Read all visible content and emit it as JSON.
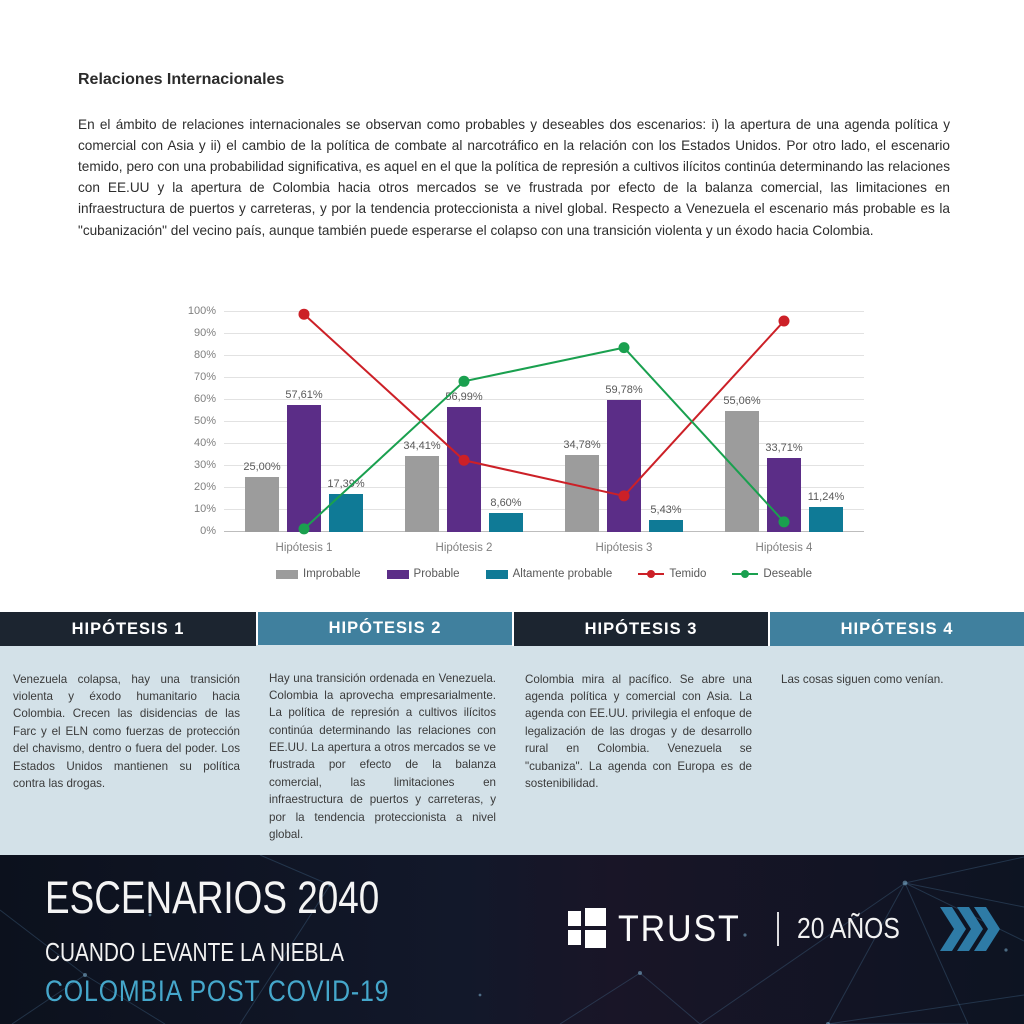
{
  "page": {
    "title": "Relaciones Internacionales",
    "intro": "En el ámbito de relaciones internacionales se observan como probables y deseables dos escenarios: i) la apertura de una agenda política y comercial con Asia y ii) el cambio de la política de combate al narcotráfico en la relación con los Estados Unidos. Por otro lado, el escenario temido, pero con una probabilidad significativa, es aquel en el que la política de represión a cultivos ilícitos continúa determinando las relaciones con EE.UU y la apertura de Colombia hacia otros mercados se ve frustrada por efecto de la balanza comercial, las limitaciones en infraestructura de puertos y carreteras, y por la tendencia proteccionista a nivel global. Respecto a Venezuela el escenario más probable es la \"cubanización\" del vecino país, aunque también puede esperarse el colapso con una transición violenta y un éxodo hacia Colombia."
  },
  "chart_data": {
    "type": "bar",
    "subtype": "grouped-bars-with-line-overlay",
    "categories": [
      "Hipótesis 1",
      "Hipótesis 2",
      "Hipótesis 3",
      "Hipótesis 4"
    ],
    "bar_series": [
      {
        "name": "Improbable",
        "color": "#9c9c9c",
        "values": [
          25.0,
          34.41,
          34.78,
          55.06
        ],
        "labels": [
          "25,00%",
          "34,41%",
          "34,78%",
          "55,06%"
        ]
      },
      {
        "name": "Probable",
        "color": "#5b2d87",
        "values": [
          57.61,
          56.99,
          59.78,
          33.71
        ],
        "labels": [
          "57,61%",
          "56,99%",
          "59,78%",
          "33,71%"
        ]
      },
      {
        "name": "Altamente probable",
        "color": "#0f7a96",
        "values": [
          17.39,
          8.6,
          5.43,
          11.24
        ],
        "labels": [
          "17,39%",
          "8,60%",
          "5,43%",
          "11,24%"
        ]
      }
    ],
    "line_series": [
      {
        "name": "Temido",
        "color": "#cc2027",
        "values": [
          99,
          32.6,
          16.4,
          95.9
        ]
      },
      {
        "name": "Deseable",
        "color": "#1aa04f",
        "values": [
          1.4,
          68.5,
          83.8,
          4.6
        ]
      }
    ],
    "ylim": [
      0,
      100
    ],
    "ytick_step": 10,
    "ytick_labels": [
      "0%",
      "10%",
      "20%",
      "30%",
      "40%",
      "50%",
      "60%",
      "70%",
      "80%",
      "90%",
      "100%"
    ],
    "grid": true,
    "legend_position": "bottom"
  },
  "hypotheses": [
    {
      "label": "HIPÓTESIS 1",
      "style": "dark",
      "text": "Venezuela colapsa, hay una transición violenta y éxodo humanitario hacia Colombia. Crecen las disidencias de las Farc y el ELN como fuerzas de protección del chavismo, dentro o fuera del poder. Los Estados Unidos mantienen su política contra las drogas."
    },
    {
      "label": "HIPÓTESIS 2",
      "style": "blue",
      "text": "Hay una transición ordenada en Venezuela. Colombia la aprovecha empresarialmente. La política de represión a cultivos ilícitos continúa determinando las relaciones con EE.UU. La apertura a otros mercados se ve frustrada por efecto de la balanza comercial, las limitaciones en infraestructura de puertos y carreteras, y por la tendencia proteccionista a nivel global."
    },
    {
      "label": "HIPÓTESIS 3",
      "style": "dark",
      "text": "Colombia mira al pacífico. Se abre una agenda política y comercial con Asia. La agenda con EE.UU. privilegia el enfoque de legalización de las drogas y de desarrollo rural en Colombia. Venezuela se \"cubaniza\". La agenda con Europa es de sostenibilidad."
    },
    {
      "label": "HIPÓTESIS 4",
      "style": "blue",
      "text": "Las cosas siguen como venían."
    }
  ],
  "footer": {
    "title": "ESCENARIOS 2040",
    "subtitle": "CUANDO LEVANTE LA NIEBLA",
    "tagline": "COLOMBIA POST COVID-19",
    "brand": "TRUST",
    "divider": "|",
    "anniversary": "20 AÑOS"
  },
  "colors": {
    "header_dark": "#1c2530",
    "header_blue": "#40809e",
    "panel_bg": "#d3e1e8",
    "footer_bg": "#0d1220",
    "tagline_blue": "#45a7cb",
    "chevron_blue": "#2e7ba6"
  }
}
